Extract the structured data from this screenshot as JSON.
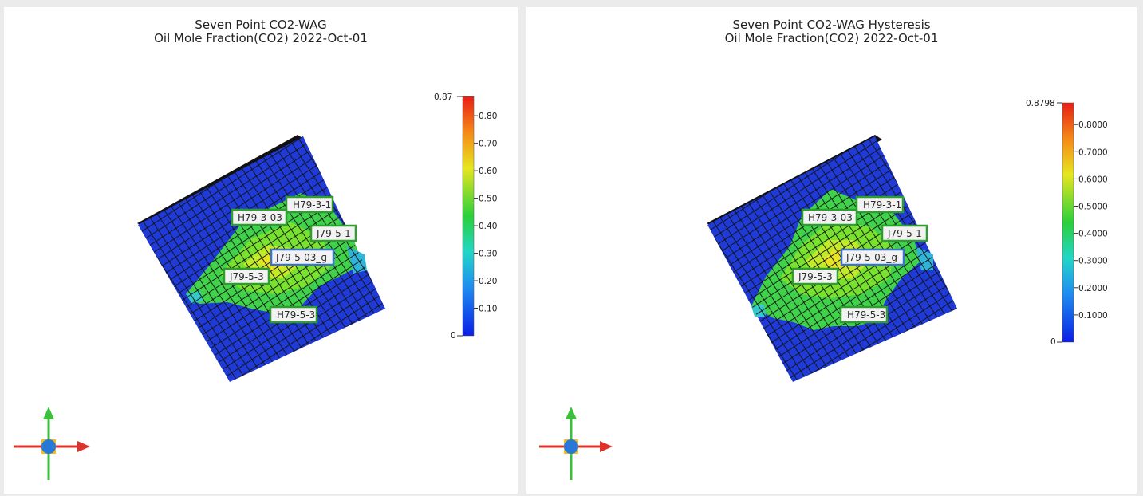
{
  "panels": [
    {
      "id": "left",
      "title_line1": "Seven Point CO2-WAG",
      "title_line2": "Oil Mole Fraction(CO2)  2022-Oct-01",
      "scale": {
        "top_label": "0.87",
        "bottom_label": "0",
        "ticks": [
          "0.80",
          "0.70",
          "0.60",
          "0.50",
          "0.40",
          "0.30",
          "0.20",
          "0.10"
        ]
      },
      "wells": [
        "H79-3-1",
        "H79-3-03",
        "J79-5-1",
        "J79-5-03_g",
        "J79-5-3",
        "H79-5-3"
      ]
    },
    {
      "id": "right",
      "title_line1": "Seven Point CO2-WAG Hysteresis",
      "title_line2": "Oil Mole Fraction(CO2)  2022-Oct-01",
      "scale": {
        "top_label": "0.8798",
        "bottom_label": "0",
        "ticks": [
          "0.8000",
          "0.7000",
          "0.6000",
          "0.5000",
          "0.4000",
          "0.3000",
          "0.2000",
          "0.1000"
        ]
      },
      "wells": [
        "H79-3-1",
        "H79-3-03",
        "J79-5-1",
        "J79-5-03_g",
        "J79-5-3",
        "H79-5-3"
      ]
    }
  ],
  "colors": {
    "low": "#1040d8",
    "mid": "#22c832",
    "high": "#e02020",
    "grid_line": "#111111"
  }
}
